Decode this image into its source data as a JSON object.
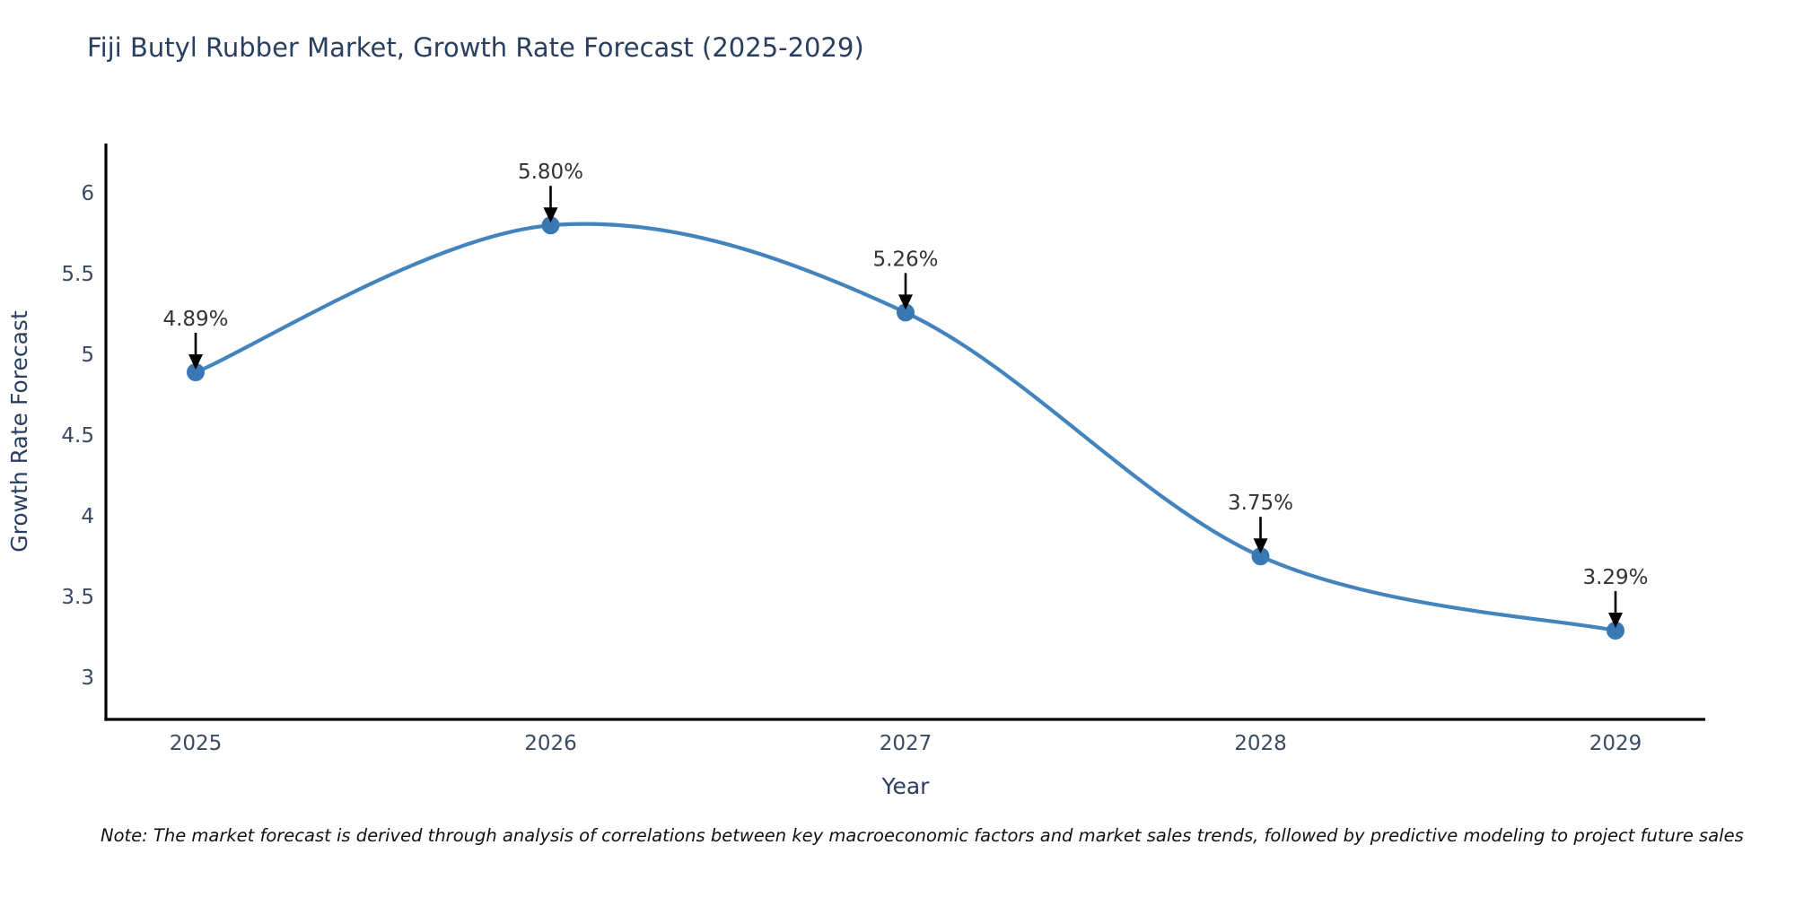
{
  "page": {
    "background_color": "#ffffff"
  },
  "header": {
    "title": "Fiji Butyl Rubber Market, Growth Rate Forecast (2025-2029)"
  },
  "chart_data": {
    "type": "line",
    "title": "Fiji Butyl Rubber Market, Growth Rate Forecast (2025-2029)",
    "x": [
      2025,
      2026,
      2027,
      2028,
      2029
    ],
    "values": [
      4.89,
      5.8,
      5.26,
      3.75,
      3.29
    ],
    "point_labels": [
      "4.89%",
      "5.80%",
      "5.26%",
      "3.75%",
      "3.29%"
    ],
    "xlabel": "Year",
    "ylabel": "Growth Rate Forecast",
    "yticks": [
      3,
      3.5,
      4,
      4.5,
      5,
      5.5,
      6
    ],
    "ylim": [
      2.74,
      6.31
    ],
    "line_shape": "spline",
    "grid": false,
    "legend": "none",
    "annotations_have_arrows": true,
    "colors": {
      "line": "#4484bd",
      "marker": "#3a78b3",
      "axis_line": "#000000",
      "title_text": "#2a3f5f",
      "tick_text": "#3b4a63",
      "annotation_text": "#333333",
      "annotation_arrow": "#000000"
    }
  },
  "footnote": {
    "text": "Note: The market forecast is derived through analysis of correlations between key macroeconomic factors and market sales trends, followed by predictive modeling to project future sales"
  }
}
